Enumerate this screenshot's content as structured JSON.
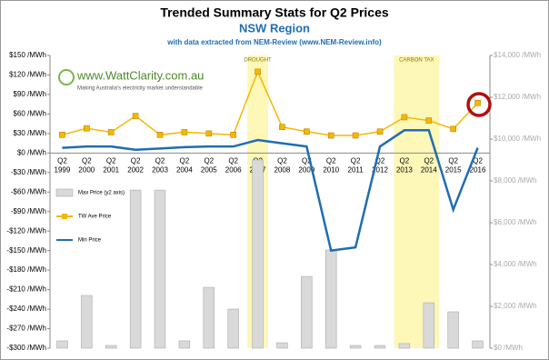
{
  "logo": {
    "name": "www.WattClarity.com.au",
    "tagline": "Making Australia's electricity market understandable"
  },
  "chart_data": {
    "type": "combo",
    "title": "Trended Summary Stats for Q2 Prices",
    "subtitle": "NSW Region",
    "source": "with data extracted from NEM-Review (www.NEM-Review.info)",
    "period": "Q2",
    "categories": [
      "1999",
      "2000",
      "2001",
      "2002",
      "2003",
      "2004",
      "2005",
      "2006",
      "2007",
      "2008",
      "2009",
      "2010",
      "2011",
      "2012",
      "2013",
      "2014",
      "2015",
      "2016"
    ],
    "series": [
      {
        "name": "Max Price (y2 axis)",
        "kind": "bar",
        "axis": "y2",
        "color": "#d9d9d9",
        "values": [
          350,
          2520,
          130,
          7560,
          7560,
          350,
          2910,
          1870,
          9000,
          260,
          3430,
          4700,
          130,
          130,
          220,
          2170,
          1740,
          350
        ]
      },
      {
        "name": "TW Ave Price",
        "kind": "line",
        "color": "#f5b800",
        "values": [
          28,
          38,
          32,
          57,
          28,
          32,
          30,
          28,
          125,
          40,
          33,
          27,
          27,
          33,
          55,
          50,
          37,
          77
        ]
      },
      {
        "name": "Min Price",
        "kind": "line",
        "color": "#1f6db5",
        "values": [
          8,
          10,
          10,
          5,
          7,
          9,
          10,
          10,
          20,
          15,
          10,
          -150,
          -145,
          10,
          35,
          35,
          -87,
          8
        ]
      }
    ],
    "shaded_spans": [
      {
        "label": "DROUGHT",
        "from": "2007",
        "to": "2007"
      },
      {
        "label": "CARBON TAX",
        "from": "2013",
        "to": "2014"
      }
    ],
    "ylim": [
      -300,
      150
    ],
    "yticks": [
      {
        "value": -300,
        "label": "-$300 /MWh"
      },
      {
        "value": -270,
        "label": "-$270 /MWh"
      },
      {
        "value": -240,
        "label": "-$240 /MWh"
      },
      {
        "value": -210,
        "label": "-$210 /MWh"
      },
      {
        "value": -180,
        "label": "-$180 /MWh"
      },
      {
        "value": -150,
        "label": "-$150 /MWh"
      },
      {
        "value": -120,
        "label": "-$120 /MWh"
      },
      {
        "value": -90,
        "label": "-$90 /MWh"
      },
      {
        "value": -60,
        "label": "-$60 /MWh"
      },
      {
        "value": -30,
        "label": "-$30 /MWh"
      },
      {
        "value": 0,
        "label": "$0 /MWh"
      },
      {
        "value": 30,
        "label": "$30 /MWh"
      },
      {
        "value": 60,
        "label": "$60 /MWh"
      },
      {
        "value": 90,
        "label": "$90 /MWh"
      },
      {
        "value": 120,
        "label": "$120 /MWh"
      },
      {
        "value": 150,
        "label": "$150 /MWh"
      }
    ],
    "y2lim": [
      0,
      14000
    ],
    "y2ticks": [
      {
        "value": 0,
        "label": "$0 /MWh"
      },
      {
        "value": 2000,
        "label": "$2,000 /MWh"
      },
      {
        "value": 4000,
        "label": "$4,000 /MWh"
      },
      {
        "value": 6000,
        "label": "$6,000 /MWh"
      },
      {
        "value": 8000,
        "label": "$8,000 /MWh"
      },
      {
        "value": 10000,
        "label": "$10,000 /MWh"
      },
      {
        "value": 12000,
        "label": "$12,000 /MWh"
      },
      {
        "value": 14000,
        "label": "$14,000 /MWh"
      }
    ],
    "legend": "inside-left"
  }
}
